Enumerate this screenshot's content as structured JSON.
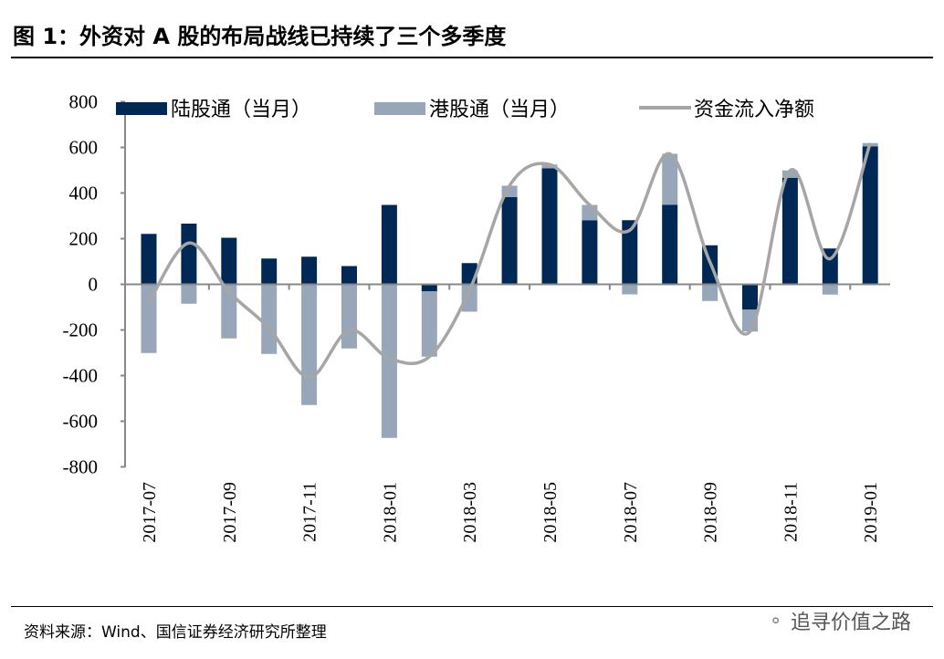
{
  "title": "图 1：外资对 A 股的布局战线已持续了三个多季度",
  "source": "资料来源：Wind、国信证券经济研究所整理",
  "watermark": "追寻价值之路",
  "colors": {
    "north": "#002855",
    "south": "#97A6B8",
    "net": "#A6A6A6"
  },
  "chart_data": {
    "type": "bar",
    "stacked": true,
    "categories": [
      "2017-07",
      "2017-08",
      "2017-09",
      "2017-10",
      "2017-11",
      "2017-12",
      "2018-01",
      "2018-02",
      "2018-03",
      "2018-04",
      "2018-05",
      "2018-06",
      "2018-07",
      "2018-08",
      "2018-09",
      "2018-10",
      "2018-11",
      "2018-12",
      "2019-01"
    ],
    "tick_labels": [
      "2017-07",
      "2017-09",
      "2017-11",
      "2018-01",
      "2018-03",
      "2018-05",
      "2018-07",
      "2018-09",
      "2018-11",
      "2019-01"
    ],
    "series": [
      {
        "name": "陆股通（当月）",
        "type": "bar",
        "values": [
          221,
          266,
          204,
          113,
          121,
          80,
          348,
          -31,
          93,
          382,
          508,
          281,
          281,
          349,
          171,
          -111,
          467,
          157,
          605
        ]
      },
      {
        "name": "港股通（当月）",
        "type": "bar",
        "values": [
          -301,
          -85,
          -237,
          -305,
          -529,
          -281,
          -673,
          -286,
          -120,
          50,
          17,
          67,
          -44,
          223,
          -73,
          -96,
          32,
          -45,
          14
        ]
      },
      {
        "name": "资金流入净额",
        "type": "line",
        "values": [
          -80,
          181,
          -33,
          -192,
          -408,
          -201,
          -325,
          -317,
          -27,
          432,
          525,
          348,
          237,
          572,
          98,
          -207,
          499,
          112,
          619
        ]
      }
    ],
    "yticks": [
      800,
      600,
      400,
      200,
      0,
      -200,
      -400,
      -600,
      -800
    ],
    "ylim": [
      -800,
      800
    ],
    "legend": "top"
  }
}
